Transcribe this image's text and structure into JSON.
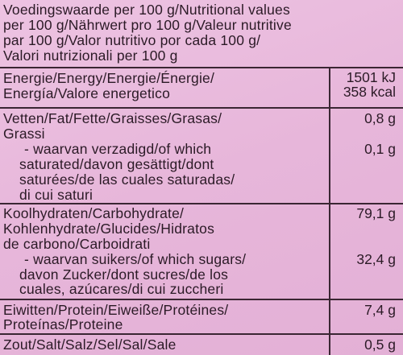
{
  "header": {
    "lines": [
      "Voedingswaarde per 100 g/Nutritional values",
      "per 100 g/Nährwert pro 100 g/Valeur nutritive",
      "par 100 g/Valor nutritivo por cada 100 g/",
      "Valori nutrizionali per 100 g"
    ]
  },
  "table": {
    "rows": [
      {
        "label": [
          "Energie/Energy/Energie/Énergie/",
          "Energía/Valore energetico"
        ],
        "value": [
          "1501 kJ",
          "358 kcal"
        ]
      },
      {
        "label": [
          "Vetten/Fat/Fette/Graisses/Grasas/",
          "Grassi"
        ],
        "value": [
          "0,8 g"
        ]
      },
      {
        "label": [
          "- waarvan verzadigd/of which",
          "saturated/davon gesättigt/dont",
          "saturées/de las cuales saturadas/",
          "di cui saturi"
        ],
        "value": [
          "0,1 g"
        ]
      },
      {
        "label": [
          "Koolhydraten/Carbohydrate/",
          "Kohlenhydrate/Glucides/Hidratos",
          "de carbono/Carboidrati"
        ],
        "value": [
          "79,1 g"
        ]
      },
      {
        "label": [
          "- waarvan suikers/of which sugars/",
          "davon Zucker/dont sucres/de los",
          "cuales, azúcares/di cui zuccheri"
        ],
        "value": [
          "32,4 g"
        ]
      },
      {
        "label": [
          "Eiwitten/Protein/Eiweiße/Protéines/",
          "Proteínas/Proteine"
        ],
        "value": [
          "7,4 g"
        ]
      },
      {
        "label": [
          "Zout/Salt/Salz/Sel/Sal/Sale"
        ],
        "value": [
          "0,5 g"
        ]
      }
    ]
  }
}
